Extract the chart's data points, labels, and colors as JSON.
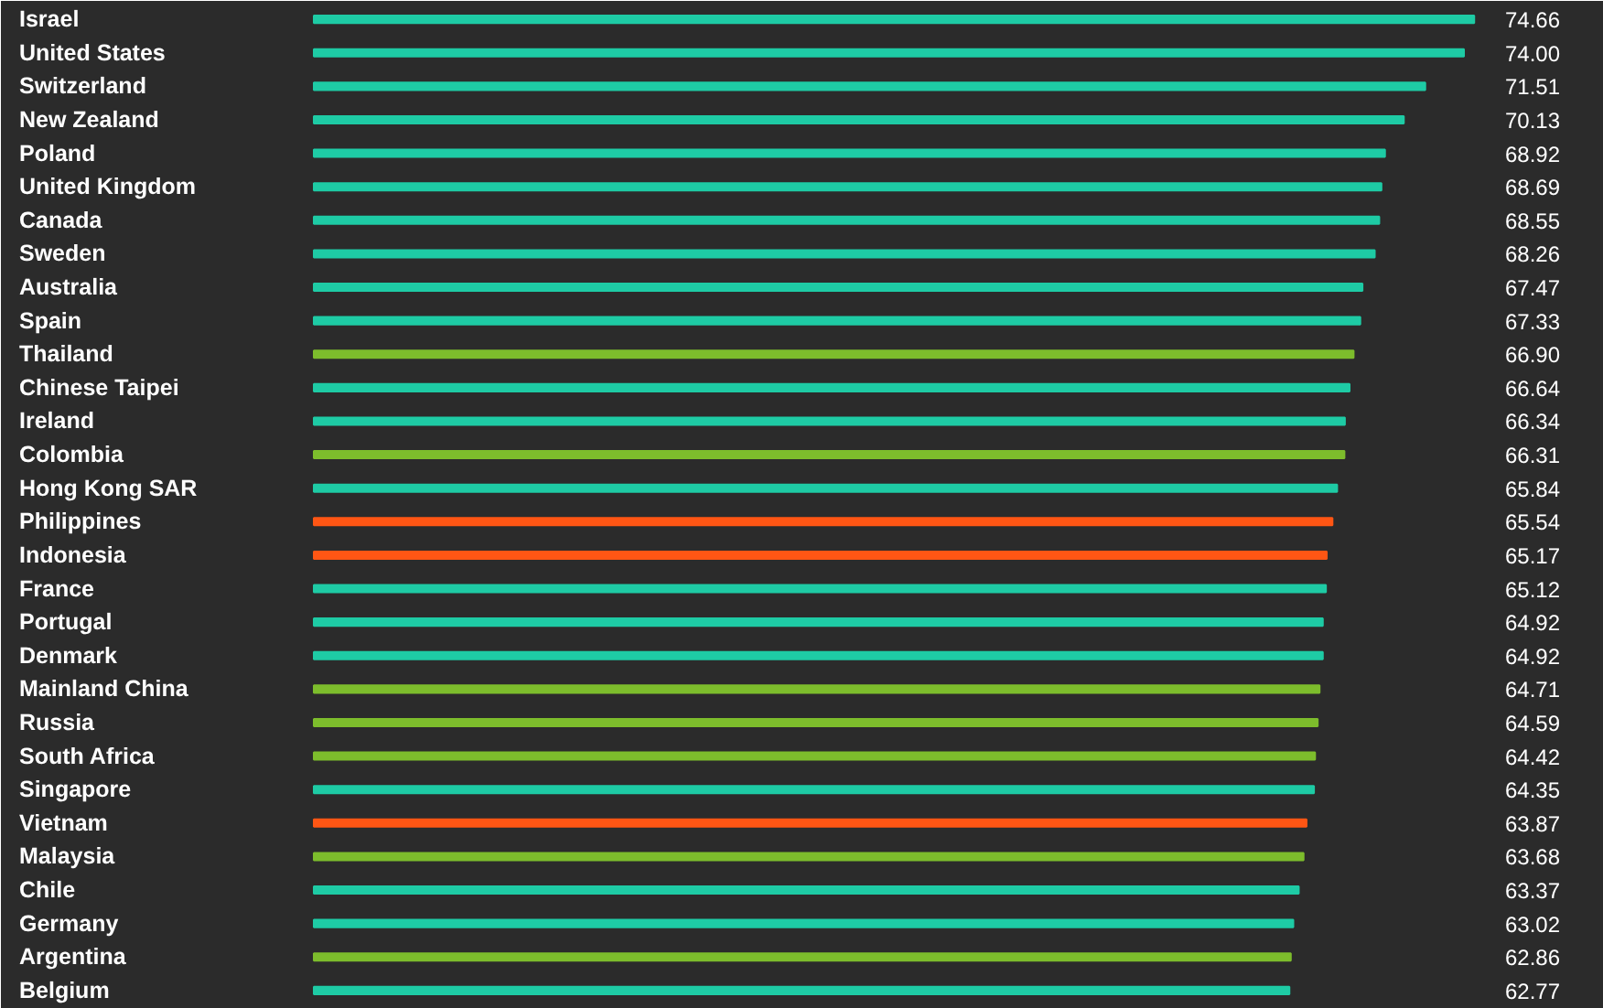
{
  "chart_data": {
    "type": "bar",
    "orientation": "horizontal",
    "value_labels": [
      "74.66",
      "74.00",
      "71.51",
      "70.13",
      "68.92",
      "68.69",
      "68.55",
      "68.26",
      "67.47",
      "67.33",
      "66.90",
      "66.64",
      "66.34",
      "66.31",
      "65.84",
      "65.54",
      "65.17",
      "65.12",
      "64.92",
      "64.92",
      "64.71",
      "64.59",
      "64.42",
      "64.35",
      "63.87",
      "63.68",
      "63.37",
      "63.02",
      "62.86",
      "62.77"
    ],
    "xlim": [
      0,
      75
    ],
    "categories": [
      "Israel",
      "United States",
      "Switzerland",
      "New Zealand",
      "Poland",
      "United Kingdom",
      "Canada",
      "Sweden",
      "Australia",
      "Spain",
      "Thailand",
      "Chinese Taipei",
      "Ireland",
      "Colombia",
      "Hong Kong SAR",
      "Philippines",
      "Indonesia",
      "France",
      "Portugal",
      "Denmark",
      "Mainland China",
      "Russia",
      "South Africa",
      "Singapore",
      "Vietnam",
      "Malaysia",
      "Chile",
      "Germany",
      "Argentina",
      "Belgium"
    ],
    "values": [
      74.66,
      74.0,
      71.51,
      70.13,
      68.92,
      68.69,
      68.55,
      68.26,
      67.47,
      67.33,
      66.9,
      66.64,
      66.34,
      66.31,
      65.84,
      65.54,
      65.17,
      65.12,
      64.92,
      64.92,
      64.71,
      64.59,
      64.42,
      64.35,
      63.87,
      63.68,
      63.37,
      63.02,
      62.86,
      62.77
    ],
    "colors": [
      "#1ecba5",
      "#1ecba5",
      "#1ecba5",
      "#1ecba5",
      "#1ecba5",
      "#1ecba5",
      "#1ecba5",
      "#1ecba5",
      "#1ecba5",
      "#1ecba5",
      "#7dbd2c",
      "#1ecba5",
      "#1ecba5",
      "#7dbd2c",
      "#1ecba5",
      "#ff5614",
      "#ff5614",
      "#1ecba5",
      "#1ecba5",
      "#1ecba5",
      "#7dbd2c",
      "#7dbd2c",
      "#7dbd2c",
      "#1ecba5",
      "#ff5614",
      "#7dbd2c",
      "#1ecba5",
      "#1ecba5",
      "#7dbd2c",
      "#1ecba5"
    ],
    "grid": false
  }
}
